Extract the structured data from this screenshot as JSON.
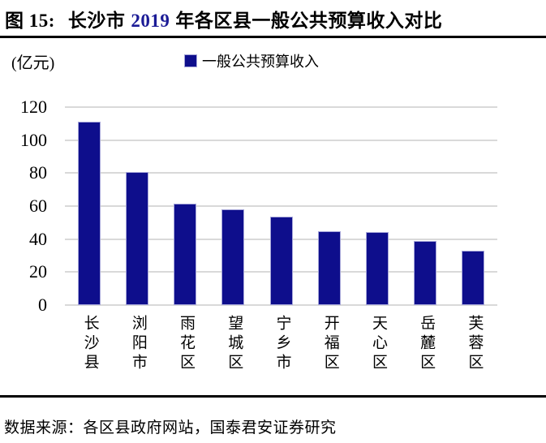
{
  "header": {
    "fig_label": "图 15:",
    "title_pre": "长沙市",
    "title_year": "2019",
    "title_post": "年各区县一般公共预算收入对比",
    "year_color": "#1b1b96"
  },
  "chart_data": {
    "type": "bar",
    "title": "长沙市 2019 年各区县一般公共预算收入对比",
    "unit_label": "(亿元)",
    "legend": "一般公共预算收入",
    "legend_position": "top",
    "categories": [
      "长沙县",
      "浏阳市",
      "雨花区",
      "望城区",
      "宁乡市",
      "开福区",
      "天心区",
      "岳麓区",
      "芙蓉区"
    ],
    "values": [
      111,
      80.5,
      61.3,
      57.9,
      53.8,
      44.6,
      44.5,
      38.8,
      32.8
    ],
    "xlabel": "",
    "ylabel": "亿元",
    "ylim": [
      0,
      120
    ],
    "y_ticks": [
      0,
      20,
      40,
      60,
      80,
      100,
      120
    ],
    "grid": true,
    "bar_color": "#0e0e8c",
    "bar_border_color": "#a6a6d9",
    "grid_color": "#d9d9d9"
  },
  "footer": {
    "source": "数据来源：各区县政府网站，国泰君安证券研究"
  }
}
